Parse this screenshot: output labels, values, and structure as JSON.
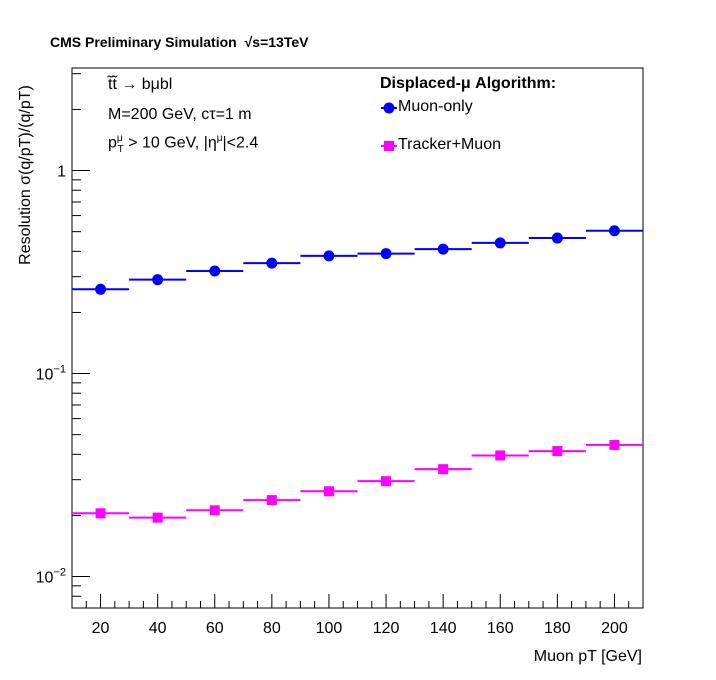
{
  "header": {
    "text": "CMS Preliminary Simulation",
    "energy": "√s=13TeV"
  },
  "info": {
    "process": "t̃t̃ → bμbl",
    "params": "M=200 GeV, cτ=1 m",
    "cut_pt_prefix": "p",
    "cut_pt_sup": "μ",
    "cut_pt_sub": "T",
    "cut_pt_rest": " > 10 GeV, |η",
    "cut_eta_sup": "μ",
    "cut_eta_rest": "|<2.4"
  },
  "chart_data": {
    "type": "scatter",
    "ylabel": "Resolution   σ(q/pT)/(q/pT)",
    "xlabel": "Muon pT [GeV]",
    "xlim": [
      10,
      210
    ],
    "ylim": [
      0.007,
      3.2
    ],
    "yscale": "log",
    "grid": false,
    "legend_title": "Displaced-μ Algorithm:",
    "legend_position": "top-right",
    "x_ticks": [
      20,
      40,
      60,
      80,
      100,
      120,
      140,
      160,
      180,
      200
    ],
    "y_ticks": [
      {
        "value": 0.01,
        "label": "10",
        "exp": "−2"
      },
      {
        "value": 0.1,
        "label": "10",
        "exp": "−1"
      },
      {
        "value": 1,
        "label": "1",
        "exp": ""
      }
    ],
    "bin_half_width": 10,
    "series": [
      {
        "name": "Muon-only",
        "color": "#0000ff",
        "marker": "circle",
        "x": [
          20,
          40,
          60,
          80,
          100,
          120,
          140,
          160,
          180,
          200
        ],
        "y": [
          0.26,
          0.29,
          0.32,
          0.35,
          0.38,
          0.39,
          0.41,
          0.44,
          0.465,
          0.505
        ]
      },
      {
        "name": "Tracker+Muon",
        "color": "#ff00ff",
        "marker": "square",
        "x": [
          20,
          40,
          60,
          80,
          100,
          120,
          140,
          160,
          180,
          200
        ],
        "y": [
          0.0205,
          0.0195,
          0.0212,
          0.0238,
          0.0263,
          0.0295,
          0.0338,
          0.0395,
          0.0415,
          0.0445
        ]
      }
    ]
  }
}
